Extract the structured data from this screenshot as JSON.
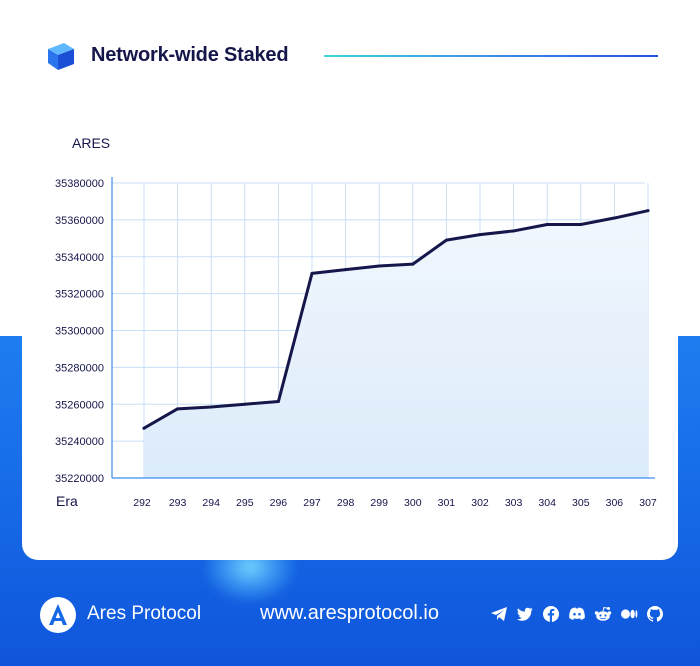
{
  "header": {
    "title": "Network-wide Staked"
  },
  "chart_data": {
    "type": "area",
    "ylabel": "ARES",
    "xlabel": "Era",
    "categories": [
      "292",
      "293",
      "294",
      "295",
      "296",
      "297",
      "298",
      "299",
      "300",
      "301",
      "302",
      "303",
      "304",
      "305",
      "306",
      "307"
    ],
    "values": [
      35247000,
      35257500,
      35258500,
      35260000,
      35261500,
      35331000,
      35333000,
      35335000,
      35336000,
      35349000,
      35352000,
      35354000,
      35357500,
      35357500,
      35361000,
      35365000
    ],
    "yticks": [
      "35220000",
      "35240000",
      "35260000",
      "35280000",
      "35300000",
      "35320000",
      "35340000",
      "35360000",
      "35380000"
    ],
    "ylim": [
      35220000,
      35380000
    ],
    "grid": true,
    "colors": {
      "line": "#15164a",
      "fill": "#dcebfa",
      "grid": "#c8dff7",
      "axis": "#3b8ff0"
    }
  },
  "footer": {
    "brand": "Ares Protocol",
    "website": "www.aresprotocol.io",
    "social_icons": [
      "telegram-icon",
      "twitter-icon",
      "facebook-icon",
      "discord-icon",
      "reddit-icon",
      "medium-icon",
      "github-icon"
    ]
  },
  "colors": {
    "accent": "#1668e6",
    "title": "#15164a"
  }
}
